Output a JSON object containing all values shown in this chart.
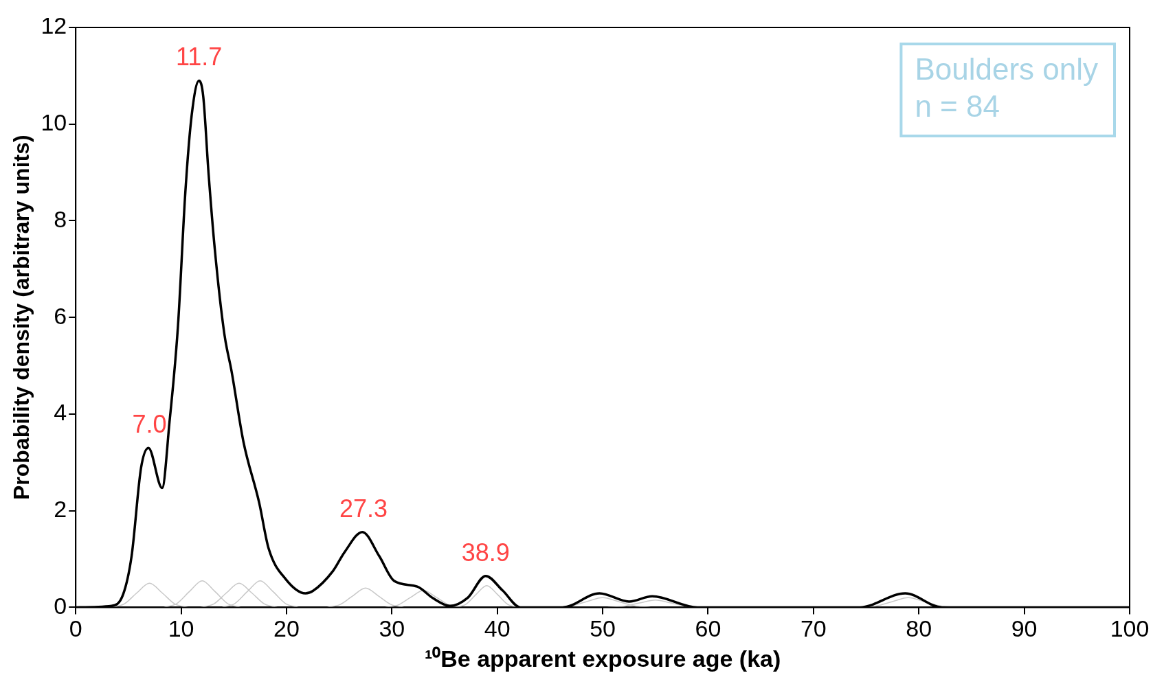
{
  "chart_data": {
    "type": "line",
    "xlabel": "¹⁰Be apparent exposure age (ka)",
    "ylabel": "Probability density (arbitrary units)",
    "xlim": [
      0,
      100
    ],
    "xticks": [
      0,
      10,
      20,
      30,
      40,
      50,
      60,
      70,
      80,
      90,
      100
    ],
    "ylim": [
      0,
      12
    ],
    "yticks": [
      0,
      2,
      4,
      6,
      8,
      10,
      12
    ],
    "grid": false,
    "legend": false,
    "marker": "none",
    "line_style": "solid",
    "series": [
      {
        "color": "#000000",
        "x": [
          0,
          3.4,
          4.5,
          5.3,
          6.2,
          6.9,
          8.2,
          8.9,
          9.7,
          10.4,
          11.0,
          11.7,
          12.1,
          12.6,
          13.2,
          14.1,
          14.8,
          15.9,
          17.4,
          18.3,
          19.9,
          21.8,
          22.5,
          24.4,
          25.5,
          27.2,
          28.8,
          30.2,
          32.4,
          33.9,
          35.5,
          37.2,
          38.9,
          40.5,
          42.2,
          46.2,
          49.7,
          52.5,
          54.7,
          59.0,
          74.4,
          78.7,
          82.2,
          100
        ],
        "values": [
          0,
          0.03,
          0.27,
          1.06,
          2.89,
          3.3,
          2.47,
          3.84,
          5.82,
          8.59,
          10.18,
          10.9,
          10.57,
          8.99,
          7.4,
          5.66,
          4.87,
          3.44,
          2.17,
          1.22,
          0.59,
          0.29,
          0.34,
          0.75,
          1.14,
          1.56,
          1.06,
          0.55,
          0.43,
          0.19,
          0.03,
          0.2,
          0.65,
          0.35,
          0,
          0,
          0.29,
          0.12,
          0.23,
          0,
          0,
          0.29,
          0,
          0
        ]
      },
      {
        "color": "#c8c8c8",
        "x": [
          3.4,
          4.6,
          5.8,
          7,
          8.2,
          9.4,
          10.6
        ],
        "values": [
          0,
          0.07,
          0.3,
          0.5,
          0.3,
          0.07,
          0
        ]
      },
      {
        "color": "#c8c8c8",
        "x": [
          8.4,
          9.6,
          10.8,
          12,
          13.2,
          14.4,
          15.6
        ],
        "values": [
          0,
          0.08,
          0.33,
          0.55,
          0.33,
          0.08,
          0
        ]
      },
      {
        "color": "#c8c8c8",
        "x": [
          11.9,
          13.1,
          14.3,
          15.5,
          16.7,
          17.9,
          19.1
        ],
        "values": [
          0,
          0.07,
          0.3,
          0.5,
          0.3,
          0.07,
          0
        ]
      },
      {
        "color": "#c8c8c8",
        "x": [
          13.9,
          15.1,
          16.3,
          17.5,
          18.7,
          19.9,
          21.1
        ],
        "values": [
          0,
          0.08,
          0.33,
          0.55,
          0.33,
          0.08,
          0
        ]
      },
      {
        "color": "#c8c8c8",
        "x": [
          23.9,
          25.1,
          26.3,
          27.5,
          28.7,
          29.9,
          31.1
        ],
        "values": [
          0,
          0.06,
          0.24,
          0.4,
          0.24,
          0.06,
          0
        ]
      },
      {
        "color": "#c8c8c8",
        "x": [
          29.4,
          30.6,
          31.8,
          33,
          34.2,
          35.4,
          36.6
        ],
        "values": [
          0,
          0.05,
          0.21,
          0.35,
          0.21,
          0.05,
          0
        ]
      },
      {
        "color": "#c8c8c8",
        "x": [
          36,
          37,
          38,
          39,
          40,
          41,
          42
        ],
        "values": [
          0,
          0.06,
          0.27,
          0.45,
          0.27,
          0.06,
          0
        ]
      },
      {
        "color": "#c8c8c8",
        "x": [
          45.5,
          47,
          48.5,
          50,
          51.5,
          53,
          54.5
        ],
        "values": [
          0,
          0.03,
          0.12,
          0.2,
          0.12,
          0.03,
          0
        ]
      },
      {
        "color": "#c8c8c8",
        "x": [
          50.5,
          52,
          53.5,
          55,
          56.5,
          58,
          59.5
        ],
        "values": [
          0,
          0.02,
          0.09,
          0.15,
          0.09,
          0.02,
          0
        ]
      },
      {
        "color": "#c8c8c8",
        "x": [
          74.5,
          76,
          77.5,
          79,
          80.5,
          82,
          83.5
        ],
        "values": [
          0,
          0.03,
          0.12,
          0.2,
          0.12,
          0.03,
          0
        ]
      }
    ],
    "annotations": [
      "Boulders only",
      "n = 84",
      {
        "text": "7.0",
        "x": 7.0,
        "y": 3.3
      },
      {
        "text": "11.7",
        "x": 11.7,
        "y": 10.9
      },
      {
        "text": "27.3",
        "x": 27.3,
        "y": 1.56
      },
      {
        "text": "38.9",
        "x": 38.9,
        "y": 0.65
      }
    ]
  }
}
